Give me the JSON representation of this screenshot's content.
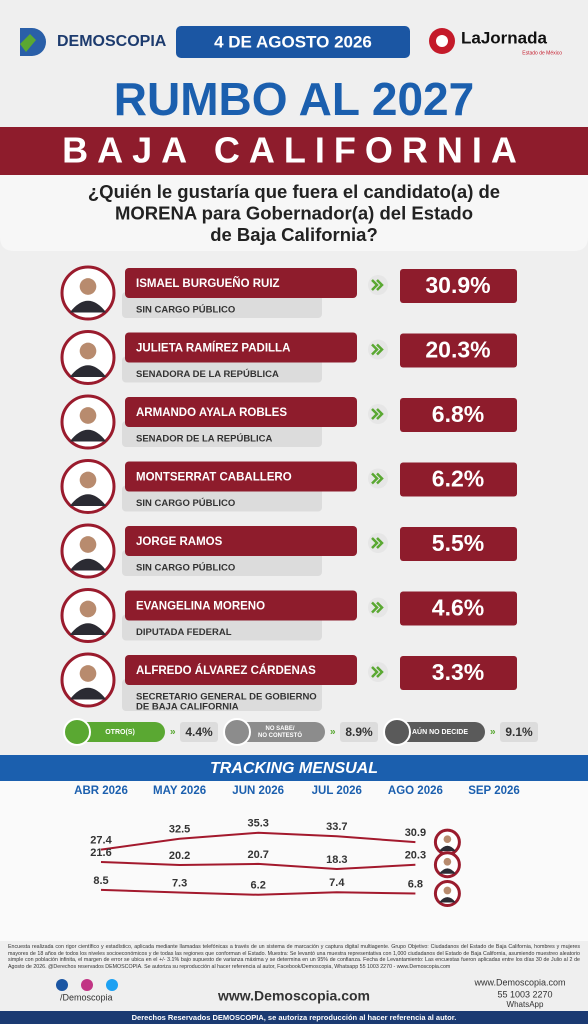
{
  "header": {
    "logo": "DEMOSCOPIA",
    "date": "4 DE AGOSTO 2026",
    "partner": "LaJornada",
    "partner_subtitle": "Estado de México"
  },
  "title": "RUMBO AL 2027",
  "subtitle": "BAJA CALIFORNIA",
  "question": [
    "¿Quién le gustaría que fuera el candidato(a) de",
    "MORENA para Gobernador(a) del Estado",
    "de Baja California?"
  ],
  "candidates": [
    {
      "name": "ISMAEL BURGUEÑO RUIZ",
      "role": [
        "SIN CARGO PÚBLICO"
      ],
      "value": "30.9%"
    },
    {
      "name": "JULIETA RAMÍREZ PADILLA",
      "role": [
        "SENADORA DE LA REPÚBLICA"
      ],
      "value": "20.3%"
    },
    {
      "name": "ARMANDO AYALA ROBLES",
      "role": [
        "SENADOR DE LA REPÚBLICA"
      ],
      "value": "6.8%"
    },
    {
      "name": "MONTSERRAT CABALLERO",
      "role": [
        "SIN CARGO PÚBLICO"
      ],
      "value": "6.2%"
    },
    {
      "name": "JORGE RAMOS",
      "role": [
        "SIN CARGO PÚBLICO"
      ],
      "value": "5.5%"
    },
    {
      "name": "EVANGELINA MORENO",
      "role": [
        "DIPUTADA FEDERAL"
      ],
      "value": "4.6%"
    },
    {
      "name": "ALFREDO ÁLVAREZ CÁRDENAS",
      "role": [
        "SECRETARIO GENERAL DE GOBIERNO",
        "DE BAJA CALIFORNIA"
      ],
      "value": "3.3%"
    }
  ],
  "others": [
    {
      "label": [
        "OTRO(S)"
      ],
      "value": "4.4%",
      "color": "#5aa832"
    },
    {
      "label": [
        "NO SABE/",
        "NO CONTESTÓ"
      ],
      "value": "8.9%",
      "color": "#8c8c8c"
    },
    {
      "label": [
        "AÚN NO DECIDE"
      ],
      "value": "9.1%",
      "color": "#5a5a5a"
    }
  ],
  "tracking": {
    "type": "line",
    "title": "TRACKING MENSUAL",
    "x": [
      "ABR 2026",
      "MAY 2026",
      "JUN 2026",
      "JUL 2026",
      "AGO 2026",
      "SEP 2026"
    ],
    "ylim": [
      0,
      40
    ],
    "series": [
      {
        "color": "#a3192d",
        "values": [
          27.4,
          32.5,
          35.3,
          33.7,
          30.9,
          null
        ]
      },
      {
        "color": "#a3192d",
        "values": [
          21.6,
          20.2,
          20.7,
          18.3,
          20.3,
          null
        ]
      },
      {
        "color": "#a3192d",
        "values": [
          8.5,
          7.3,
          6.2,
          7.4,
          6.8,
          null
        ]
      }
    ]
  },
  "footer": {
    "methodology": "Encuesta realizada con rigor científico y estadístico, aplicada mediante llamadas telefónicas a través de un sistema de marcación y captura digital multiagente. Grupo Objetivo: Ciudadanos del Estado de Baja California, hombres y mujeres mayores de 18 años de todos los niveles socioeconómicos y de todas las regiones que conforman el Estado. Muestra: Se levantó una muestra representativa con 1,000 ciudadanos del Estado de Baja California, asumiendo muestreo aleatorio simple con población infinita, el margen de error se ubica en el +/- 3.1% bajo supuesto de varianza máxima y se determina en un 95% de confianza. Fecha de Levantamiento: Las encuestas fueron aplicadas entre los días 30 de Julio al 2 de Agosto de 2026. @Derechos reservados DEMOSCOPIA. Se autoriza su reproducción al hacer referencia al autor, Facebook/Demoscopia, Whatsapp 55 1003 2270 - www.Demoscopia.com",
    "social": "/Demoscopia",
    "website": "www.Demoscopia.com",
    "contact_web": "www.Demoscopia.com",
    "phone": "55 1003 2270",
    "whatsapp": "WhatsApp",
    "rights": "Derechos Reservados DEMOSCOPIA, se autoriza reproducción al hacer referencia al autor."
  }
}
